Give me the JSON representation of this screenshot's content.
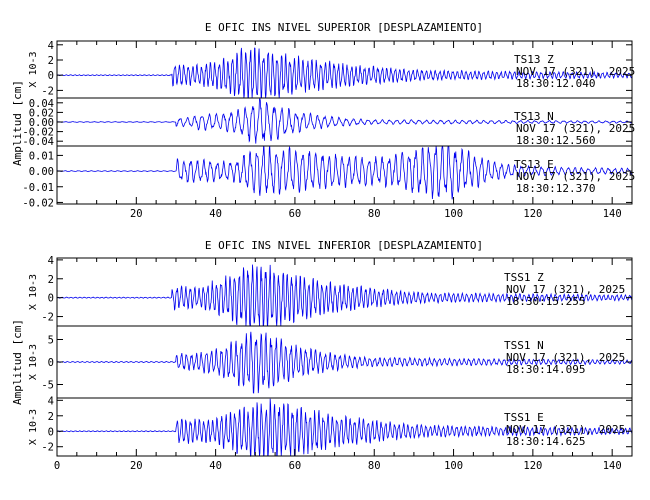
{
  "chart_data": [
    {
      "type": "line",
      "title": "E OFIC INS NIVEL SUPERIOR [DESPLAZAMIENTO]",
      "ylabel": "Amplitud [cm]",
      "xlim": [
        0,
        145
      ],
      "x_ticks": [
        "20",
        "40",
        "60",
        "80",
        "100",
        "120",
        "140"
      ],
      "panels": [
        {
          "station": "TS13",
          "component": "Z",
          "date_line": "NOV 17 (321), 2025",
          "time": "18:30:12.040",
          "scale_label": "X 10-3",
          "ylim": [
            -3,
            4.5
          ],
          "y_ticks": [
            "4",
            "2",
            "0",
            "-2"
          ],
          "signal": {
            "onset": 29,
            "peak_time": 50,
            "peak_amp": 3.6,
            "rise": 8,
            "decay": 25,
            "tail": 0.3,
            "freq": 0.9,
            "seed": 1
          }
        },
        {
          "station": "TS13",
          "component": "N",
          "date_line": "NOV 17 (321), 2025",
          "time": "18:30:12.560",
          "scale_label": "",
          "ylim": [
            -0.05,
            0.05
          ],
          "y_ticks": [
            "0.04",
            "0.02",
            "0.00",
            "-0.02",
            "-0.04"
          ],
          "signal": {
            "onset": 30,
            "peak_time": 52,
            "peak_amp": 0.045,
            "rise": 6,
            "decay": 12,
            "tail": 0.15,
            "freq": 0.55,
            "seed": 2
          }
        },
        {
          "station": "TS13",
          "component": "E",
          "date_line": "NOV 17 (321), 2025",
          "time": "18:30:12.370",
          "scale_label": "",
          "ylim": [
            -0.021,
            0.016
          ],
          "y_ticks": [
            "0.01",
            "0.00",
            "-0.01",
            "-0.02"
          ],
          "signal": {
            "onset": 30,
            "peak_time": 52,
            "peak_amp": 0.016,
            "rise": 5,
            "decay": 40,
            "tail": 0.35,
            "freq": 0.6,
            "seed": 3,
            "bump_time": 97,
            "bump_amp": 0.012,
            "bump_width": 10
          }
        }
      ]
    },
    {
      "type": "line",
      "title": "E OFIC INS NIVEL INFERIOR [DESPLAZAMIENTO]",
      "ylabel": "Amplitud [cm]",
      "xlim": [
        0,
        145
      ],
      "x_ticks": [
        "0",
        "20",
        "40",
        "60",
        "80",
        "100",
        "120",
        "140"
      ],
      "panels": [
        {
          "station": "TSS1",
          "component": "Z",
          "date_line": "NOV 17 (321), 2025",
          "time": "18:30:15.255",
          "scale_label": "X 10-3",
          "ylim": [
            -3,
            4.2
          ],
          "y_ticks": [
            "4",
            "2",
            "0",
            "-2"
          ],
          "signal": {
            "onset": 29,
            "peak_time": 52,
            "peak_amp": 3.5,
            "rise": 10,
            "decay": 22,
            "tail": 0.25,
            "freq": 0.9,
            "seed": 4
          }
        },
        {
          "station": "TSS1",
          "component": "N",
          "date_line": "NOV 17 (321), 2025",
          "time": "18:30:14.095",
          "scale_label": "X 10-3",
          "ylim": [
            -8,
            8
          ],
          "y_ticks": [
            "5",
            "0",
            "-5"
          ],
          "signal": {
            "onset": 30,
            "peak_time": 51,
            "peak_amp": 7,
            "rise": 7,
            "decay": 14,
            "tail": 0.2,
            "freq": 0.8,
            "seed": 5
          }
        },
        {
          "station": "TSS1",
          "component": "E",
          "date_line": "NOV 17 (321), 2025",
          "time": "18:30:14.625",
          "scale_label": "X 10-3",
          "ylim": [
            -3.2,
            4.3
          ],
          "y_ticks": [
            "4",
            "2",
            "0",
            "-2"
          ],
          "signal": {
            "onset": 30,
            "peak_time": 55,
            "peak_amp": 3.9,
            "rise": 12,
            "decay": 24,
            "tail": 0.3,
            "freq": 0.9,
            "seed": 6
          }
        }
      ]
    }
  ]
}
